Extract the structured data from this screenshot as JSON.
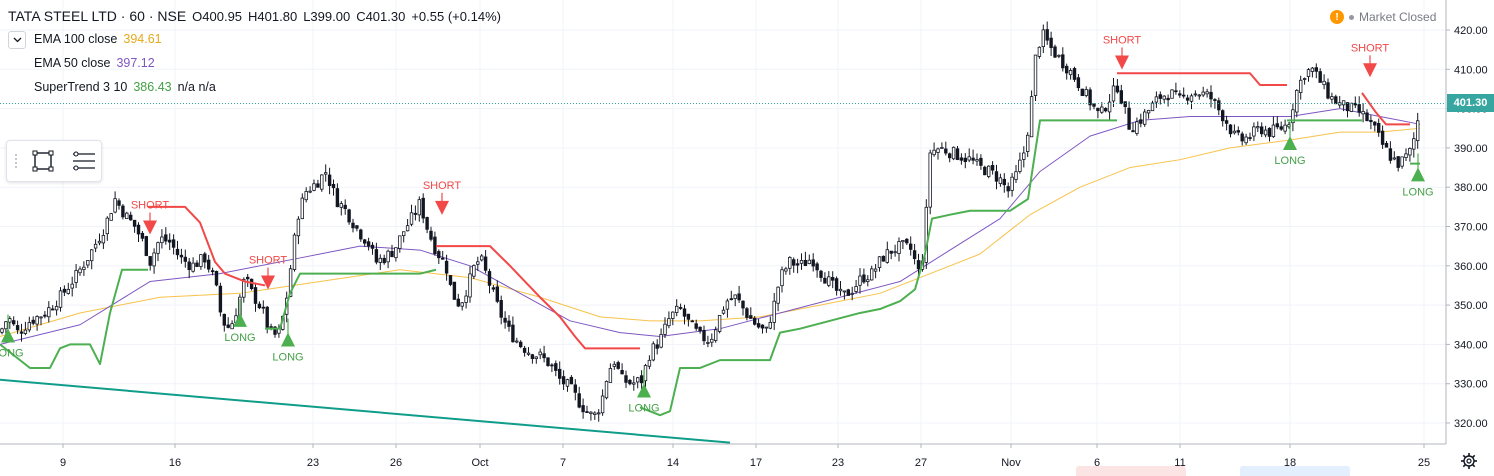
{
  "header": {
    "symbol": "TATA STEEL LTD · 60 · NSE",
    "open": "O400.95",
    "high": "H401.80",
    "low": "L399.00",
    "close": "C401.30",
    "change": "+0.55 (+0.14%)"
  },
  "indicators": [
    {
      "label": "EMA 100 close",
      "value": "394.61",
      "color": "#e5a91b"
    },
    {
      "label": "EMA 50 close",
      "value": "397.12",
      "color": "#7e57c2"
    },
    {
      "label": "SuperTrend 3 10",
      "value": "386.43",
      "extra": "n/a n/a",
      "color": "#43a047"
    }
  ],
  "market_status": "Market Closed",
  "last_price": "401.30",
  "colors": {
    "up": "#26a69a",
    "down": "#ef5350",
    "supertrend_up": "#4caf50",
    "supertrend_down": "#f24848",
    "ema100": "#f7c24a",
    "ema50": "#7e57c2",
    "trendline": "#0f9d8a",
    "price_tag": "#37a6a0"
  },
  "icons": {
    "collapse": "chevron-down-icon",
    "warning": "exclamation-icon",
    "settings": "gear-icon",
    "rect_tool": "rectangle-tool-icon",
    "lines_tool": "horizontal-lines-icon"
  },
  "chart_data": {
    "type": "candlestick",
    "symbol": "TATA STEEL LTD",
    "interval": "60",
    "exchange": "NSE",
    "y_axis": {
      "ticks": [
        "420.00",
        "410.00",
        "400.00",
        "390.00",
        "380.00",
        "370.00",
        "360.00",
        "350.00",
        "340.00",
        "330.00",
        "320.00"
      ],
      "range": [
        316,
        426
      ]
    },
    "x_axis": {
      "ticks": [
        "9",
        "16",
        "23",
        "26",
        "Oct",
        "7",
        "14",
        "17",
        "23",
        "27",
        "Nov",
        "6",
        "11",
        "18",
        "25"
      ]
    },
    "candle_close_path": [
      [
        0,
        343
      ],
      [
        8,
        347
      ],
      [
        18,
        343
      ],
      [
        30,
        346
      ],
      [
        45,
        348
      ],
      [
        60,
        352
      ],
      [
        75,
        357
      ],
      [
        90,
        363
      ],
      [
        105,
        370
      ],
      [
        115,
        377
      ],
      [
        125,
        373
      ],
      [
        135,
        370
      ],
      [
        145,
        365
      ],
      [
        150,
        361
      ],
      [
        160,
        367
      ],
      [
        170,
        366
      ],
      [
        180,
        362
      ],
      [
        192,
        360
      ],
      [
        205,
        362
      ],
      [
        215,
        356
      ],
      [
        222,
        346
      ],
      [
        230,
        344
      ],
      [
        238,
        350
      ],
      [
        245,
        357
      ],
      [
        252,
        353
      ],
      [
        262,
        349
      ],
      [
        270,
        343
      ],
      [
        278,
        342
      ],
      [
        285,
        349
      ],
      [
        292,
        362
      ],
      [
        298,
        373
      ],
      [
        306,
        379
      ],
      [
        316,
        381
      ],
      [
        326,
        384
      ],
      [
        336,
        377
      ],
      [
        346,
        374
      ],
      [
        358,
        369
      ],
      [
        368,
        366
      ],
      [
        376,
        361
      ],
      [
        384,
        362
      ],
      [
        394,
        364
      ],
      [
        404,
        369
      ],
      [
        414,
        373
      ],
      [
        420,
        376
      ],
      [
        428,
        369
      ],
      [
        436,
        364
      ],
      [
        446,
        360
      ],
      [
        452,
        353
      ],
      [
        460,
        350
      ],
      [
        468,
        355
      ],
      [
        476,
        361
      ],
      [
        482,
        361
      ],
      [
        490,
        355
      ],
      [
        500,
        348
      ],
      [
        510,
        343
      ],
      [
        520,
        340
      ],
      [
        530,
        338
      ],
      [
        540,
        337
      ],
      [
        550,
        335
      ],
      [
        560,
        331
      ],
      [
        570,
        329
      ],
      [
        580,
        325
      ],
      [
        590,
        322
      ],
      [
        596,
        322
      ],
      [
        602,
        326
      ],
      [
        608,
        333
      ],
      [
        614,
        336
      ],
      [
        622,
        331
      ],
      [
        632,
        330
      ],
      [
        642,
        331
      ],
      [
        650,
        338
      ],
      [
        660,
        341
      ],
      [
        670,
        347
      ],
      [
        680,
        349
      ],
      [
        690,
        345
      ],
      [
        700,
        342
      ],
      [
        710,
        341
      ],
      [
        718,
        346
      ],
      [
        726,
        351
      ],
      [
        736,
        352
      ],
      [
        746,
        348
      ],
      [
        756,
        345
      ],
      [
        766,
        343
      ],
      [
        774,
        350
      ],
      [
        780,
        357
      ],
      [
        790,
        361
      ],
      [
        800,
        360
      ],
      [
        812,
        362
      ],
      [
        822,
        358
      ],
      [
        832,
        355
      ],
      [
        842,
        352
      ],
      [
        852,
        354
      ],
      [
        862,
        357
      ],
      [
        872,
        358
      ],
      [
        882,
        362
      ],
      [
        892,
        364
      ],
      [
        902,
        365
      ],
      [
        912,
        364
      ],
      [
        918,
        358
      ],
      [
        924,
        364
      ],
      [
        930,
        389
      ],
      [
        940,
        390
      ],
      [
        950,
        389
      ],
      [
        960,
        388
      ],
      [
        970,
        387
      ],
      [
        980,
        385
      ],
      [
        990,
        384
      ],
      [
        1000,
        382
      ],
      [
        1008,
        379
      ],
      [
        1016,
        383
      ],
      [
        1024,
        389
      ],
      [
        1030,
        398
      ],
      [
        1036,
        414
      ],
      [
        1042,
        419
      ],
      [
        1052,
        415
      ],
      [
        1062,
        412
      ],
      [
        1072,
        409
      ],
      [
        1082,
        405
      ],
      [
        1092,
        401
      ],
      [
        1100,
        398
      ],
      [
        1108,
        402
      ],
      [
        1118,
        406
      ],
      [
        1124,
        400
      ],
      [
        1130,
        395
      ],
      [
        1140,
        397
      ],
      [
        1150,
        400
      ],
      [
        1160,
        403
      ],
      [
        1170,
        404
      ],
      [
        1180,
        402
      ],
      [
        1190,
        404
      ],
      [
        1200,
        404
      ],
      [
        1210,
        403
      ],
      [
        1218,
        400
      ],
      [
        1226,
        397
      ],
      [
        1234,
        393
      ],
      [
        1242,
        392
      ],
      [
        1250,
        393
      ],
      [
        1260,
        395
      ],
      [
        1270,
        394
      ],
      [
        1280,
        395
      ],
      [
        1288,
        396
      ],
      [
        1296,
        404
      ],
      [
        1304,
        409
      ],
      [
        1312,
        410
      ],
      [
        1320,
        407
      ],
      [
        1330,
        403
      ],
      [
        1340,
        401
      ],
      [
        1350,
        400
      ],
      [
        1360,
        399
      ],
      [
        1368,
        397
      ],
      [
        1374,
        395
      ],
      [
        1382,
        391
      ],
      [
        1390,
        388
      ],
      [
        1398,
        386
      ],
      [
        1404,
        387
      ],
      [
        1410,
        389
      ],
      [
        1416,
        394
      ],
      [
        1420,
        401
      ]
    ],
    "series": [
      {
        "name": "EMA 100 close",
        "last": 394.61,
        "values": [
          [
            0,
            342
          ],
          [
            80,
            348
          ],
          [
            160,
            352
          ],
          [
            240,
            353
          ],
          [
            320,
            356
          ],
          [
            400,
            359
          ],
          [
            470,
            357
          ],
          [
            540,
            352
          ],
          [
            600,
            347
          ],
          [
            650,
            346
          ],
          [
            700,
            346
          ],
          [
            760,
            347
          ],
          [
            820,
            350
          ],
          [
            880,
            353
          ],
          [
            930,
            358
          ],
          [
            980,
            363
          ],
          [
            1030,
            373
          ],
          [
            1080,
            380
          ],
          [
            1130,
            385
          ],
          [
            1180,
            387
          ],
          [
            1230,
            390
          ],
          [
            1290,
            392
          ],
          [
            1340,
            394
          ],
          [
            1380,
            394
          ],
          [
            1420,
            395
          ]
        ]
      },
      {
        "name": "EMA 50 close",
        "last": 397.12,
        "values": [
          [
            0,
            340
          ],
          [
            80,
            345
          ],
          [
            150,
            356
          ],
          [
            220,
            358
          ],
          [
            300,
            362
          ],
          [
            360,
            365
          ],
          [
            420,
            364
          ],
          [
            470,
            360
          ],
          [
            520,
            353
          ],
          [
            570,
            346
          ],
          [
            620,
            343
          ],
          [
            660,
            342
          ],
          [
            720,
            344
          ],
          [
            780,
            348
          ],
          [
            840,
            352
          ],
          [
            900,
            356
          ],
          [
            950,
            364
          ],
          [
            1000,
            372
          ],
          [
            1040,
            384
          ],
          [
            1090,
            393
          ],
          [
            1140,
            397
          ],
          [
            1190,
            398
          ],
          [
            1240,
            398
          ],
          [
            1290,
            398
          ],
          [
            1340,
            400
          ],
          [
            1380,
            398
          ],
          [
            1420,
            396
          ]
        ]
      },
      {
        "name": "SuperTrend 3 10",
        "last": 386.43
      }
    ],
    "supertrend_segments": [
      {
        "dir": "up",
        "points": [
          [
            0,
            340
          ],
          [
            30,
            334
          ],
          [
            50,
            334
          ],
          [
            60,
            339
          ],
          [
            70,
            340
          ],
          [
            90,
            340
          ],
          [
            100,
            335
          ],
          [
            110,
            348
          ],
          [
            122,
            359
          ],
          [
            148,
            359
          ]
        ]
      },
      {
        "dir": "down",
        "points": [
          [
            148,
            375
          ],
          [
            185,
            375
          ],
          [
            200,
            371
          ],
          [
            215,
            361
          ],
          [
            225,
            358
          ],
          [
            245,
            356
          ],
          [
            265,
            355
          ]
        ]
      },
      {
        "dir": "up",
        "points": [
          [
            265,
            344
          ],
          [
            280,
            344
          ],
          [
            290,
            353
          ],
          [
            300,
            358
          ],
          [
            420,
            358
          ],
          [
            436,
            359
          ]
        ]
      },
      {
        "dir": "down",
        "points": [
          [
            436,
            365
          ],
          [
            490,
            365
          ],
          [
            510,
            360
          ],
          [
            525,
            356
          ],
          [
            540,
            352
          ],
          [
            560,
            347
          ],
          [
            575,
            342
          ],
          [
            585,
            339
          ],
          [
            640,
            339
          ]
        ]
      },
      {
        "dir": "up",
        "points": [
          [
            640,
            324
          ],
          [
            660,
            322
          ],
          [
            670,
            323
          ],
          [
            680,
            334
          ],
          [
            700,
            334
          ],
          [
            720,
            336
          ],
          [
            770,
            336
          ],
          [
            780,
            343
          ],
          [
            800,
            344
          ],
          [
            830,
            346
          ],
          [
            860,
            348
          ],
          [
            880,
            349
          ],
          [
            900,
            351
          ],
          [
            915,
            354
          ],
          [
            925,
            363
          ],
          [
            932,
            372
          ],
          [
            950,
            373
          ],
          [
            970,
            374
          ],
          [
            990,
            374
          ],
          [
            1010,
            374
          ],
          [
            1028,
            377
          ],
          [
            1040,
            397
          ],
          [
            1080,
            397
          ],
          [
            1117,
            397
          ]
        ]
      },
      {
        "dir": "down",
        "points": [
          [
            1117,
            409
          ],
          [
            1190,
            409
          ],
          [
            1250,
            409
          ],
          [
            1260,
            406
          ],
          [
            1287,
            406
          ]
        ]
      },
      {
        "dir": "up",
        "points": [
          [
            1287,
            397
          ],
          [
            1300,
            397
          ],
          [
            1330,
            397
          ],
          [
            1362,
            397
          ]
        ]
      },
      {
        "dir": "down",
        "points": [
          [
            1362,
            404
          ],
          [
            1376,
            399
          ],
          [
            1386,
            396
          ],
          [
            1410,
            396
          ]
        ]
      },
      {
        "dir": "up",
        "points": [
          [
            1410,
            386
          ],
          [
            1420,
            386
          ]
        ]
      }
    ],
    "signals": [
      {
        "type": "LONG",
        "x": 8,
        "price": 342
      },
      {
        "type": "SHORT",
        "x": 150,
        "price": 370
      },
      {
        "type": "LONG",
        "x": 240,
        "price": 346
      },
      {
        "type": "SHORT",
        "x": 268,
        "price": 356
      },
      {
        "type": "LONG",
        "x": 288,
        "price": 341
      },
      {
        "type": "SHORT",
        "x": 442,
        "price": 375
      },
      {
        "type": "LONG",
        "x": 644,
        "price": 328
      },
      {
        "type": "SHORT",
        "x": 1122,
        "price": 412
      },
      {
        "type": "LONG",
        "x": 1290,
        "price": 391
      },
      {
        "type": "SHORT",
        "x": 1370,
        "price": 410
      },
      {
        "type": "LONG",
        "x": 1418,
        "price": 383
      }
    ],
    "trendline": {
      "points": [
        [
          0,
          331
        ],
        [
          730,
          315
        ]
      ]
    },
    "current_price_line": 401.3
  }
}
